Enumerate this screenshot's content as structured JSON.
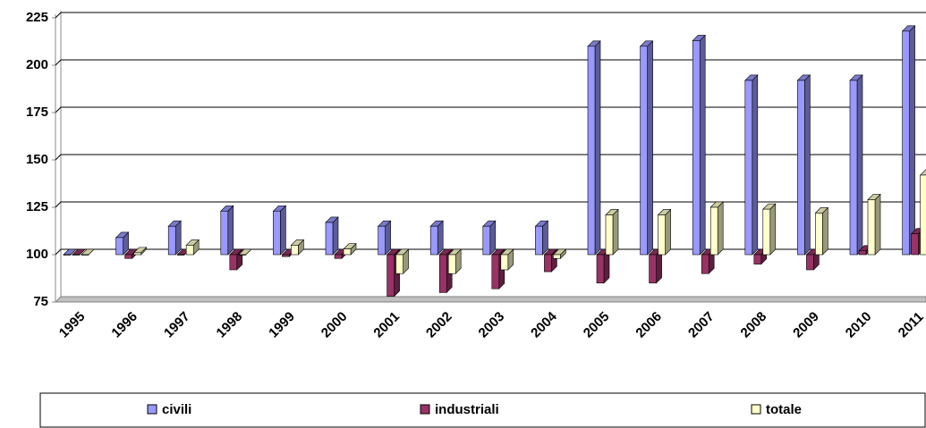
{
  "chart_data": {
    "type": "bar",
    "categories": [
      "1995",
      "1996",
      "1997",
      "1998",
      "1999",
      "2000",
      "2001",
      "2002",
      "2003",
      "2004",
      "2005",
      "2006",
      "2007",
      "2008",
      "2009",
      "2010",
      "2011"
    ],
    "series": [
      {
        "name": "civili",
        "color": "#9999ff",
        "values": [
          100,
          109,
          115,
          123,
          123,
          117,
          115,
          115,
          115,
          115,
          210,
          210,
          213,
          192,
          192,
          192,
          218
        ]
      },
      {
        "name": "industriali",
        "color": "#993366",
        "values": [
          100,
          98,
          100,
          92,
          99,
          98,
          78,
          80,
          82,
          91,
          85,
          85,
          90,
          95,
          92,
          102,
          111
        ]
      },
      {
        "name": "totale",
        "color": "#ffffcc",
        "values": [
          100,
          101,
          105,
          100,
          105,
          103,
          90,
          90,
          92,
          98,
          121,
          121,
          125,
          124,
          122,
          129,
          142
        ]
      }
    ],
    "ylim": [
      75,
      225
    ],
    "yticks": [
      75,
      100,
      125,
      150,
      175,
      200,
      225
    ],
    "baseline": 100,
    "grid": true,
    "legend": "bottom"
  }
}
